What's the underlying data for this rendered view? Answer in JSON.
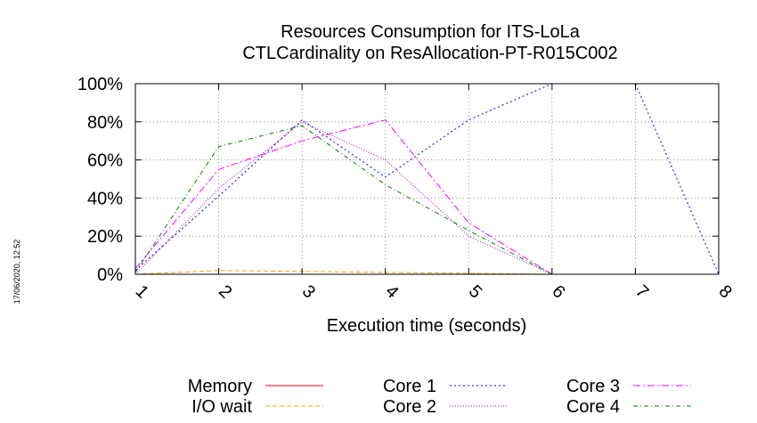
{
  "stamp": "17/06/2020, 12:52",
  "chart_data": {
    "type": "line",
    "title": "Resources Consumption for ITS-LoLa",
    "subtitle": "CTLCardinality on ResAllocation-PT-R015C002",
    "xlabel": "Execution time (seconds)",
    "ylabel": "",
    "x": [
      1,
      2,
      3,
      4,
      5,
      6,
      7,
      8
    ],
    "xlim": [
      1,
      8
    ],
    "ylim": [
      0,
      100
    ],
    "x_ticks": [
      "1",
      "2",
      "3",
      "4",
      "5",
      "6",
      "7",
      "8"
    ],
    "y_ticks": [
      "0%",
      "20%",
      "40%",
      "60%",
      "80%",
      "100%"
    ],
    "grid": true,
    "legend_position": "bottom",
    "series": [
      {
        "name": "Memory",
        "color": "#ff0000",
        "dash": "",
        "values": [
          0,
          0,
          0,
          0,
          0,
          0,
          null,
          null
        ]
      },
      {
        "name": "I/O wait",
        "color": "#ffa000",
        "dash": "5,3",
        "values": [
          0,
          2,
          1.5,
          1,
          0.5,
          0,
          null,
          null
        ]
      },
      {
        "name": "Core 1",
        "color": "#0000ff",
        "dash": "2,3",
        "values": [
          2,
          41,
          81,
          51,
          81,
          100,
          100,
          0
        ]
      },
      {
        "name": "Core 2",
        "color": "#a000d0",
        "dash": "1,2",
        "values": [
          0,
          45,
          80,
          60,
          20,
          0,
          null,
          null
        ]
      },
      {
        "name": "Core 3",
        "color": "#ff00ff",
        "dash": "8,3,2,3",
        "values": [
          3,
          55,
          70,
          81,
          27,
          0,
          null,
          null
        ]
      },
      {
        "name": "Core 4",
        "color": "#008000",
        "dash": "5,3,1,3",
        "values": [
          1,
          67,
          78,
          47,
          23,
          0,
          null,
          null
        ]
      }
    ]
  }
}
